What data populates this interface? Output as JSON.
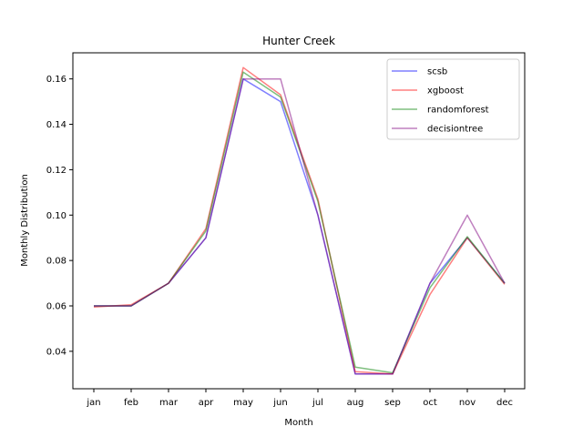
{
  "chart_data": {
    "type": "line",
    "title": "Hunter Creek",
    "xlabel": "Month",
    "ylabel": "Monthly Distribution",
    "categories": [
      "jan",
      "feb",
      "mar",
      "apr",
      "may",
      "jun",
      "jul",
      "aug",
      "sep",
      "oct",
      "nov",
      "dec"
    ],
    "ylim": [
      0.0235,
      0.1715
    ],
    "yticks": [
      0.04,
      0.06,
      0.08,
      0.1,
      0.12,
      0.14,
      0.16
    ],
    "ytick_labels": [
      "0.04",
      "0.06",
      "0.08",
      "0.10",
      "0.12",
      "0.14",
      "0.16"
    ],
    "grid": false,
    "legend_position": "top-right",
    "series": [
      {
        "name": "scsb",
        "color": "#0000ff",
        "values": [
          0.06,
          0.06,
          0.07,
          0.09,
          0.16,
          0.15,
          0.1,
          0.03,
          0.03,
          0.07,
          0.09,
          0.07
        ]
      },
      {
        "name": "xgboost",
        "color": "#ff0000",
        "values": [
          0.0595,
          0.0605,
          0.07,
          0.094,
          0.165,
          0.153,
          0.107,
          0.031,
          0.03,
          0.065,
          0.09,
          0.0695
        ]
      },
      {
        "name": "randomforest",
        "color": "#008000",
        "values": [
          0.06,
          0.06,
          0.07,
          0.093,
          0.163,
          0.152,
          0.106,
          0.033,
          0.0305,
          0.068,
          0.0905,
          0.07
        ]
      },
      {
        "name": "decisiontree",
        "color": "#800080",
        "values": [
          0.06,
          0.06,
          0.07,
          0.09,
          0.16,
          0.16,
          0.1,
          0.03,
          0.03,
          0.07,
          0.1,
          0.07
        ]
      }
    ]
  }
}
